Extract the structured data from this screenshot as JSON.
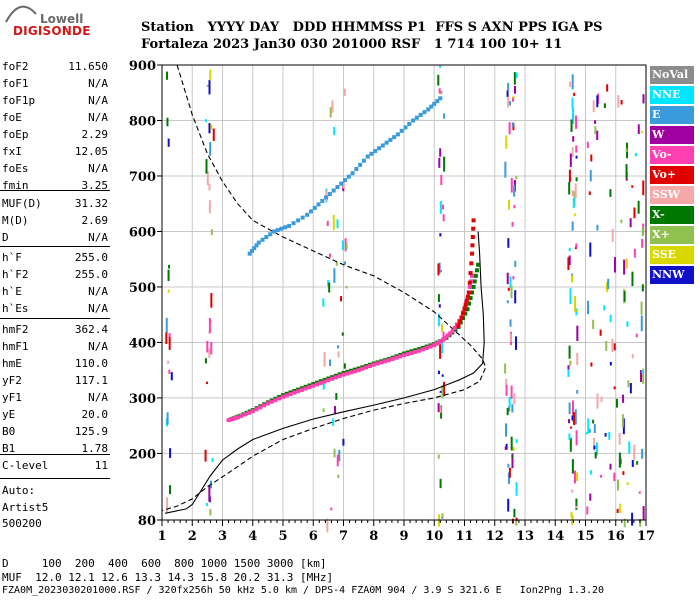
{
  "logo": {
    "top": "Lowell",
    "bottom": "DIGISONDE"
  },
  "header": {
    "line1": "Station   YYYY DAY   DDD HHMMSS P1  FFS S AXN PPS IGA PS",
    "line2": "Fortaleza 2023 Jan30 030 201000 RSF   1 714 100 10+ 11"
  },
  "params": [
    {
      "name": "foF2",
      "value": "11.650"
    },
    {
      "name": "foF1",
      "value": "N/A"
    },
    {
      "name": "foF1p",
      "value": "N/A"
    },
    {
      "name": "foE",
      "value": "N/A"
    },
    {
      "name": "foEp",
      "value": "2.29"
    },
    {
      "name": "fxI",
      "value": "12.05"
    },
    {
      "name": "foEs",
      "value": "N/A"
    },
    {
      "name": "fmin",
      "value": "3.25"
    },
    {
      "name": "MUF(D)",
      "value": "31.32"
    },
    {
      "name": "M(D)",
      "value": "2.69"
    },
    {
      "name": "D",
      "value": "N/A"
    },
    {
      "name": "h`F",
      "value": "255.0"
    },
    {
      "name": "h`F2",
      "value": "255.0"
    },
    {
      "name": "h`E",
      "value": "N/A"
    },
    {
      "name": "h`Es",
      "value": "N/A"
    },
    {
      "name": "hmF2",
      "value": "362.4"
    },
    {
      "name": "hmF1",
      "value": "N/A"
    },
    {
      "name": "hmE",
      "value": "110.0"
    },
    {
      "name": "yF2",
      "value": "117.1"
    },
    {
      "name": "yF1",
      "value": "N/A"
    },
    {
      "name": "yE",
      "value": "20.0"
    },
    {
      "name": "B0",
      "value": "125.9"
    },
    {
      "name": "B1",
      "value": "1.78"
    },
    {
      "name": "C-level",
      "value": "11"
    }
  ],
  "auto": {
    "label": "Auto:",
    "program": "Artist5",
    "version": "500200"
  },
  "footer": {
    "d_line": "D     100  200  400  600  800 1000 1500 3000 [km]",
    "muf_line": "MUF  12.0 12.1 12.6 13.3 14.3 15.8 20.2 31.3 [MHz]",
    "file_line": "FZA0M_2023030201000.RSF / 320fx256h 50 kHz 5.0 km / DPS-4 FZA0M 904 / 3.9 S 321.6 E   Ion2Png 1.3.20"
  },
  "legend": [
    {
      "label": "NoVal",
      "bg": "#8c8c8c",
      "fg": "#ffffff"
    },
    {
      "label": "NNE",
      "bg": "#00e6ff",
      "fg": "#ffffff"
    },
    {
      "label": "E",
      "bg": "#3a9bdc",
      "fg": "#ffffff"
    },
    {
      "label": "W",
      "bg": "#a000a0",
      "fg": "#ffffff"
    },
    {
      "label": "Vo-",
      "bg": "#ff40b0",
      "fg": "#ffffff"
    },
    {
      "label": "Vo+",
      "bg": "#e00000",
      "fg": "#ffffff"
    },
    {
      "label": "SSW",
      "bg": "#f4a8a8",
      "fg": "#ffffff"
    },
    {
      "label": "X-",
      "bg": "#007800",
      "fg": "#ffffff"
    },
    {
      "label": "X+",
      "bg": "#90c050",
      "fg": "#ffffff"
    },
    {
      "label": "SSE",
      "bg": "#d8d800",
      "fg": "#ffffff"
    },
    {
      "label": "NNW",
      "bg": "#1010c8",
      "fg": "#ffffff"
    }
  ],
  "chart_data": {
    "type": "scatter",
    "xlim": [
      1,
      17
    ],
    "ylim": [
      80,
      900
    ],
    "x_ticks": [
      1,
      2,
      3,
      4,
      5,
      6,
      7,
      8,
      9,
      10,
      11,
      12,
      13,
      14,
      15,
      16,
      17
    ],
    "y_ticks": [
      80,
      200,
      300,
      400,
      500,
      600,
      700,
      800,
      900
    ],
    "grid": true,
    "series": [
      {
        "name": "X-",
        "color": "#007800",
        "points": [
          [
            3.3,
            262
          ],
          [
            3.6,
            268
          ],
          [
            4.0,
            278
          ],
          [
            4.5,
            292
          ],
          [
            5.0,
            305
          ],
          [
            5.5,
            315
          ],
          [
            6.0,
            325
          ],
          [
            6.5,
            335
          ],
          [
            7.0,
            345
          ],
          [
            7.5,
            353
          ],
          [
            8.0,
            362
          ],
          [
            8.5,
            370
          ],
          [
            9.0,
            380
          ],
          [
            9.5,
            388
          ],
          [
            10.0,
            397
          ],
          [
            10.4,
            408
          ],
          [
            10.8,
            428
          ],
          [
            11.1,
            460
          ],
          [
            11.3,
            500
          ],
          [
            11.45,
            540
          ]
        ]
      },
      {
        "name": "Vo-",
        "color": "#ff40b0",
        "points": [
          [
            3.2,
            260
          ],
          [
            3.5,
            265
          ],
          [
            4.0,
            276
          ],
          [
            4.5,
            290
          ],
          [
            5.0,
            302
          ],
          [
            5.5,
            312
          ],
          [
            6.0,
            322
          ],
          [
            6.5,
            332
          ],
          [
            7.0,
            342
          ],
          [
            7.5,
            350
          ],
          [
            8.0,
            360
          ],
          [
            8.5,
            368
          ],
          [
            9.0,
            377
          ],
          [
            9.5,
            385
          ],
          [
            10.0,
            395
          ],
          [
            10.3,
            405
          ],
          [
            10.6,
            420
          ],
          [
            10.9,
            445
          ],
          [
            11.1,
            480
          ],
          [
            11.25,
            520
          ]
        ]
      },
      {
        "name": "Vo+",
        "color": "#e00000",
        "points": [
          [
            10.8,
            430
          ],
          [
            11.0,
            460
          ],
          [
            11.15,
            490
          ],
          [
            11.25,
            560
          ],
          [
            11.3,
            620
          ]
        ]
      },
      {
        "name": "E",
        "color": "#3a9bdc",
        "points": [
          [
            3.9,
            560
          ],
          [
            4.2,
            580
          ],
          [
            4.7,
            600
          ],
          [
            5.2,
            610
          ],
          [
            5.8,
            630
          ],
          [
            6.3,
            655
          ],
          [
            6.8,
            680
          ],
          [
            7.3,
            705
          ],
          [
            7.8,
            735
          ],
          [
            8.3,
            755
          ],
          [
            8.8,
            775
          ],
          [
            9.3,
            800
          ],
          [
            9.8,
            820
          ],
          [
            10.2,
            840
          ]
        ]
      }
    ],
    "extra_series": [
      {
        "name": "",
        "style": "dashed",
        "color": "#000000",
        "points": [
          [
            1.5,
            900
          ],
          [
            2.0,
            810
          ],
          [
            2.5,
            740
          ],
          [
            3.0,
            690
          ],
          [
            3.5,
            650
          ],
          [
            4.0,
            620
          ],
          [
            5.0,
            590
          ],
          [
            6.0,
            565
          ],
          [
            7.0,
            540
          ],
          [
            8.0,
            520
          ],
          [
            9.0,
            490
          ],
          [
            10.0,
            455
          ],
          [
            10.6,
            425
          ],
          [
            11.2,
            395
          ],
          [
            11.6,
            370
          ],
          [
            11.7,
            355
          ],
          [
            11.5,
            330
          ],
          [
            11.0,
            315
          ],
          [
            10.0,
            300
          ],
          [
            9.0,
            290
          ],
          [
            8.0,
            278
          ],
          [
            7.0,
            263
          ],
          [
            6.0,
            245
          ],
          [
            5.0,
            225
          ],
          [
            4.0,
            195
          ],
          [
            3.2,
            165
          ],
          [
            2.5,
            140
          ],
          [
            2.0,
            118
          ],
          [
            1.5,
            105
          ],
          [
            1.0,
            97
          ]
        ]
      },
      {
        "name": "",
        "style": "solid",
        "color": "#000000",
        "points": [
          [
            1.1,
            92
          ],
          [
            1.8,
            100
          ],
          [
            2.0,
            108
          ],
          [
            2.2,
            125
          ],
          [
            2.6,
            160
          ],
          [
            3.0,
            188
          ],
          [
            3.5,
            208
          ],
          [
            4.0,
            225
          ],
          [
            5.0,
            245
          ],
          [
            6.0,
            262
          ],
          [
            7.0,
            275
          ],
          [
            8.0,
            287
          ],
          [
            9.0,
            300
          ],
          [
            10.0,
            315
          ],
          [
            10.8,
            332
          ],
          [
            11.3,
            345
          ],
          [
            11.6,
            362
          ],
          [
            11.65,
            400
          ],
          [
            11.62,
            450
          ],
          [
            11.55,
            500
          ],
          [
            11.5,
            560
          ],
          [
            11.45,
            600
          ]
        ]
      }
    ]
  }
}
